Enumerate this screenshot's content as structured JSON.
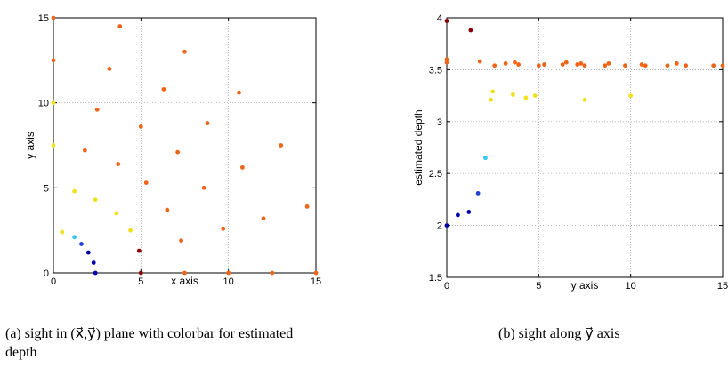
{
  "chart_data": [
    {
      "type": "scatter",
      "xlabel": "x axis",
      "ylabel": "y axis",
      "xlim": [
        0,
        15
      ],
      "ylim": [
        0,
        15
      ],
      "xticks": [
        "0",
        "5",
        "10",
        "15"
      ],
      "yticks": [
        "0",
        "5",
        "10",
        "15"
      ],
      "grid": true,
      "colors": {
        "deep_blue": "#0000a8",
        "blue": "#1f3fd6",
        "cyan": "#33c8f0",
        "yellow": "#f0e020",
        "orange": "#f06418",
        "dark_red": "#8b0000"
      },
      "points": [
        {
          "x": 0,
          "y": 15,
          "c": "orange"
        },
        {
          "x": 0,
          "y": 12.5,
          "c": "orange"
        },
        {
          "x": 0,
          "y": 10,
          "c": "yellow"
        },
        {
          "x": 0,
          "y": 7.5,
          "c": "yellow"
        },
        {
          "x": 0.5,
          "y": 2.4,
          "c": "yellow"
        },
        {
          "x": 1.2,
          "y": 4.8,
          "c": "yellow"
        },
        {
          "x": 1.2,
          "y": 2.1,
          "c": "cyan"
        },
        {
          "x": 1.6,
          "y": 1.7,
          "c": "blue"
        },
        {
          "x": 2.0,
          "y": 1.2,
          "c": "deep_blue"
        },
        {
          "x": 2.3,
          "y": 0.6,
          "c": "deep_blue"
        },
        {
          "x": 2.4,
          "y": 0,
          "c": "deep_blue"
        },
        {
          "x": 2.4,
          "y": 4.3,
          "c": "yellow"
        },
        {
          "x": 3.6,
          "y": 3.5,
          "c": "yellow"
        },
        {
          "x": 4.4,
          "y": 2.5,
          "c": "yellow"
        },
        {
          "x": 4.9,
          "y": 1.3,
          "c": "dark_red"
        },
        {
          "x": 5.0,
          "y": 0,
          "c": "dark_red"
        },
        {
          "x": 1.8,
          "y": 7.2,
          "c": "orange"
        },
        {
          "x": 2.5,
          "y": 9.6,
          "c": "orange"
        },
        {
          "x": 3.2,
          "y": 12.0,
          "c": "orange"
        },
        {
          "x": 3.8,
          "y": 14.5,
          "c": "orange"
        },
        {
          "x": 3.7,
          "y": 6.4,
          "c": "orange"
        },
        {
          "x": 5.0,
          "y": 8.6,
          "c": "orange"
        },
        {
          "x": 5.3,
          "y": 5.3,
          "c": "orange"
        },
        {
          "x": 6.3,
          "y": 10.8,
          "c": "orange"
        },
        {
          "x": 6.5,
          "y": 3.7,
          "c": "orange"
        },
        {
          "x": 7.1,
          "y": 7.1,
          "c": "orange"
        },
        {
          "x": 7.5,
          "y": 13.0,
          "c": "orange"
        },
        {
          "x": 7.3,
          "y": 1.9,
          "c": "orange"
        },
        {
          "x": 7.5,
          "y": 0,
          "c": "orange"
        },
        {
          "x": 8.8,
          "y": 8.8,
          "c": "orange"
        },
        {
          "x": 8.6,
          "y": 5.0,
          "c": "orange"
        },
        {
          "x": 9.7,
          "y": 2.6,
          "c": "orange"
        },
        {
          "x": 10.0,
          "y": 0,
          "c": "orange"
        },
        {
          "x": 10.6,
          "y": 10.6,
          "c": "orange"
        },
        {
          "x": 10.8,
          "y": 6.2,
          "c": "orange"
        },
        {
          "x": 12.0,
          "y": 3.2,
          "c": "orange"
        },
        {
          "x": 12.5,
          "y": 0,
          "c": "orange"
        },
        {
          "x": 13.0,
          "y": 7.5,
          "c": "orange"
        },
        {
          "x": 14.5,
          "y": 3.9,
          "c": "orange"
        },
        {
          "x": 15.0,
          "y": 0,
          "c": "orange"
        }
      ]
    },
    {
      "type": "scatter",
      "xlabel": "y axis",
      "ylabel": "estimated depth",
      "xlim": [
        0,
        15
      ],
      "ylim": [
        1.5,
        4
      ],
      "xticks": [
        "0",
        "5",
        "10",
        "15"
      ],
      "yticks": [
        "1.5",
        "2",
        "2.5",
        "3",
        "3.5",
        "4"
      ],
      "grid": true,
      "points": [
        {
          "x": 0,
          "y": 3.97,
          "c": "dark_red"
        },
        {
          "x": 0,
          "y": 3.6,
          "c": "orange"
        },
        {
          "x": 0,
          "y": 3.57,
          "c": "orange"
        },
        {
          "x": 0,
          "y": 2.0,
          "c": "deep_blue"
        },
        {
          "x": 0.6,
          "y": 2.1,
          "c": "deep_blue"
        },
        {
          "x": 1.3,
          "y": 3.88,
          "c": "dark_red"
        },
        {
          "x": 1.2,
          "y": 2.13,
          "c": "deep_blue"
        },
        {
          "x": 1.7,
          "y": 2.31,
          "c": "blue"
        },
        {
          "x": 1.8,
          "y": 3.58,
          "c": "orange"
        },
        {
          "x": 2.1,
          "y": 2.65,
          "c": "cyan"
        },
        {
          "x": 2.4,
          "y": 3.21,
          "c": "yellow"
        },
        {
          "x": 2.5,
          "y": 3.29,
          "c": "yellow"
        },
        {
          "x": 2.6,
          "y": 3.54,
          "c": "orange"
        },
        {
          "x": 3.2,
          "y": 3.56,
          "c": "orange"
        },
        {
          "x": 3.6,
          "y": 3.26,
          "c": "yellow"
        },
        {
          "x": 3.7,
          "y": 3.57,
          "c": "orange"
        },
        {
          "x": 3.9,
          "y": 3.55,
          "c": "orange"
        },
        {
          "x": 4.3,
          "y": 3.23,
          "c": "yellow"
        },
        {
          "x": 4.8,
          "y": 3.25,
          "c": "yellow"
        },
        {
          "x": 5.0,
          "y": 3.54,
          "c": "orange"
        },
        {
          "x": 5.3,
          "y": 3.55,
          "c": "orange"
        },
        {
          "x": 6.3,
          "y": 3.55,
          "c": "orange"
        },
        {
          "x": 6.5,
          "y": 3.57,
          "c": "orange"
        },
        {
          "x": 7.1,
          "y": 3.55,
          "c": "orange"
        },
        {
          "x": 7.3,
          "y": 3.56,
          "c": "orange"
        },
        {
          "x": 7.5,
          "y": 3.54,
          "c": "orange"
        },
        {
          "x": 7.5,
          "y": 3.21,
          "c": "yellow"
        },
        {
          "x": 8.6,
          "y": 3.54,
          "c": "orange"
        },
        {
          "x": 8.8,
          "y": 3.56,
          "c": "orange"
        },
        {
          "x": 9.7,
          "y": 3.54,
          "c": "orange"
        },
        {
          "x": 10.0,
          "y": 3.25,
          "c": "yellow"
        },
        {
          "x": 10.6,
          "y": 3.55,
          "c": "orange"
        },
        {
          "x": 10.8,
          "y": 3.54,
          "c": "orange"
        },
        {
          "x": 12.0,
          "y": 3.54,
          "c": "orange"
        },
        {
          "x": 12.5,
          "y": 3.56,
          "c": "orange"
        },
        {
          "x": 13.0,
          "y": 3.54,
          "c": "orange"
        },
        {
          "x": 14.5,
          "y": 3.54,
          "c": "orange"
        },
        {
          "x": 15.0,
          "y": 3.54,
          "c": "orange"
        }
      ]
    }
  ],
  "captions": {
    "a": "(a)  sight in (x⃗,y⃗) plane with colorbar for estimated depth",
    "b": "(b)  sight along y⃗ axis"
  }
}
